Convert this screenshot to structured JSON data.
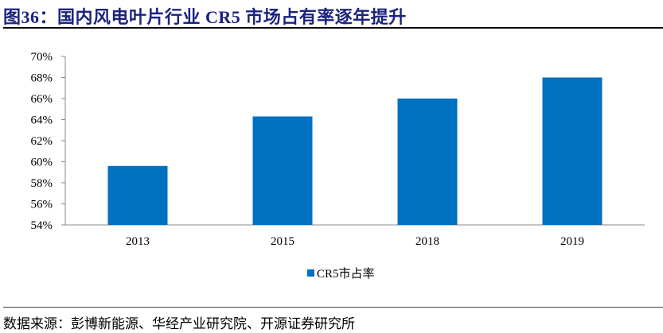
{
  "title": "图36：国内风电叶片行业 CR5 市场占有率逐年提升",
  "source": "数据来源：彭博新能源、华经产业研究院、开源证券研究所",
  "chart_data": {
    "type": "bar",
    "categories": [
      "2013",
      "2015",
      "2018",
      "2019"
    ],
    "series": [
      {
        "name": "CR5市占率",
        "values": [
          59.6,
          64.3,
          66.0,
          68.0
        ],
        "color": "#0070C0"
      }
    ],
    "ylim": [
      54,
      70
    ],
    "yticks": [
      "54%",
      "56%",
      "58%",
      "60%",
      "62%",
      "64%",
      "66%",
      "68%",
      "70%"
    ],
    "legend": "bottom-center",
    "grid": false
  }
}
